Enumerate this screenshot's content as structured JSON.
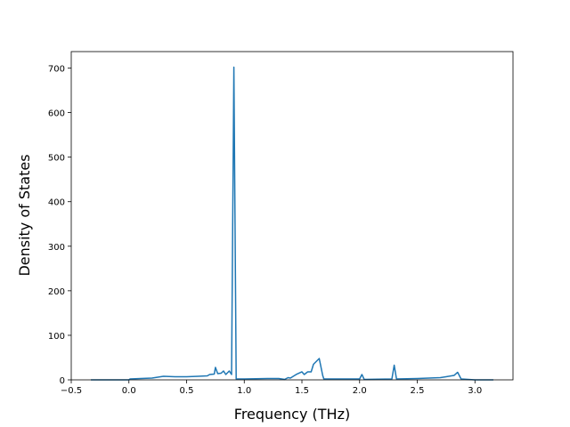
{
  "chart_data": {
    "type": "line",
    "x_label": "Frequency (THz)",
    "y_label": "Density of States",
    "x": [
      -0.33,
      0.0,
      0.01,
      0.1,
      0.2,
      0.3,
      0.4,
      0.5,
      0.6,
      0.68,
      0.7,
      0.74,
      0.75,
      0.77,
      0.8,
      0.82,
      0.84,
      0.87,
      0.89,
      0.91,
      0.93,
      1.0,
      1.2,
      1.3,
      1.35,
      1.38,
      1.4,
      1.45,
      1.5,
      1.52,
      1.55,
      1.58,
      1.6,
      1.65,
      1.68,
      1.69,
      1.9,
      2.0,
      2.02,
      2.04,
      2.28,
      2.3,
      2.32,
      2.5,
      2.7,
      2.75,
      2.82,
      2.85,
      2.88,
      3.0,
      3.16
    ],
    "values": [
      0,
      0,
      2,
      3,
      4,
      8,
      7,
      7,
      8,
      9,
      12,
      13,
      28,
      14,
      15,
      20,
      12,
      20,
      12,
      702,
      2,
      2,
      3,
      3,
      1,
      5,
      4,
      12,
      18,
      12,
      18,
      18,
      35,
      48,
      10,
      2,
      2,
      2,
      12,
      1,
      2,
      33,
      2,
      3,
      5,
      7,
      10,
      17,
      2,
      0,
      0
    ],
    "color": "#1f77b4",
    "xlim": [
      -0.5,
      3.33
    ],
    "ylim": [
      0,
      737
    ],
    "xticks": [
      {
        "value": -0.5,
        "label": "−0.5"
      },
      {
        "value": 0,
        "label": "0.0"
      },
      {
        "value": 0.5,
        "label": "0.5"
      },
      {
        "value": 1,
        "label": "1.0"
      },
      {
        "value": 1.5,
        "label": "1.5"
      },
      {
        "value": 2,
        "label": "2.0"
      },
      {
        "value": 2.5,
        "label": "2.5"
      },
      {
        "value": 3,
        "label": "3.0"
      }
    ],
    "yticks": [
      0,
      100,
      200,
      300,
      400,
      500,
      600,
      700
    ]
  }
}
